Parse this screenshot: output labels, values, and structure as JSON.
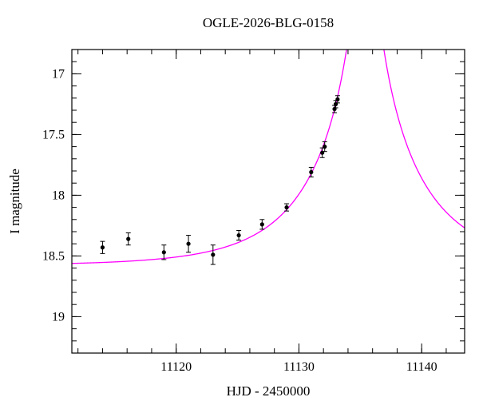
{
  "chart_data": {
    "type": "scatter",
    "title": "OGLE-2026-BLG-0158",
    "xlabel": "HJD - 2450000",
    "ylabel": "I magnitude",
    "xlim": [
      11111.5,
      11143.5
    ],
    "ylim": [
      16.8,
      19.3
    ],
    "y_axis_inverted": true,
    "grid": false,
    "legend": "none",
    "x_major_ticks": [
      {
        "value": 11120,
        "label": "11120"
      },
      {
        "value": 11130,
        "label": "11130"
      },
      {
        "value": 11140,
        "label": "11140"
      }
    ],
    "x_minor_step": 2,
    "y_major_ticks": [
      {
        "value": 17,
        "label": "17"
      },
      {
        "value": 17.5,
        "label": "17.5"
      },
      {
        "value": 18,
        "label": "18"
      },
      {
        "value": 18.5,
        "label": "18.5"
      },
      {
        "value": 19,
        "label": "19"
      }
    ],
    "y_minor_step": 0.1,
    "points": [
      {
        "x": 11114.0,
        "mag": 18.43,
        "err": 0.05
      },
      {
        "x": 11116.1,
        "mag": 18.36,
        "err": 0.05
      },
      {
        "x": 11119.0,
        "mag": 18.47,
        "err": 0.06
      },
      {
        "x": 11121.0,
        "mag": 18.4,
        "err": 0.07
      },
      {
        "x": 11123.0,
        "mag": 18.49,
        "err": 0.08
      },
      {
        "x": 11125.1,
        "mag": 18.33,
        "err": 0.04
      },
      {
        "x": 11127.0,
        "mag": 18.24,
        "err": 0.04
      },
      {
        "x": 11129.0,
        "mag": 18.1,
        "err": 0.03
      },
      {
        "x": 11131.0,
        "mag": 17.81,
        "err": 0.04
      },
      {
        "x": 11131.9,
        "mag": 17.65,
        "err": 0.04
      },
      {
        "x": 11132.1,
        "mag": 17.6,
        "err": 0.04
      },
      {
        "x": 11132.9,
        "mag": 17.29,
        "err": 0.03
      },
      {
        "x": 11133.0,
        "mag": 17.25,
        "err": 0.03
      },
      {
        "x": 11133.15,
        "mag": 17.21,
        "err": 0.03
      }
    ],
    "model_curve": {
      "model": "paczynski_microlensing",
      "t0": 11135.4,
      "tE": 8.0,
      "u0": 0.05,
      "baseline_mag": 18.58
    },
    "colors": {
      "curve": "#ff00ff",
      "points": "#000000",
      "frame": "#000000",
      "background": "#ffffff"
    }
  }
}
